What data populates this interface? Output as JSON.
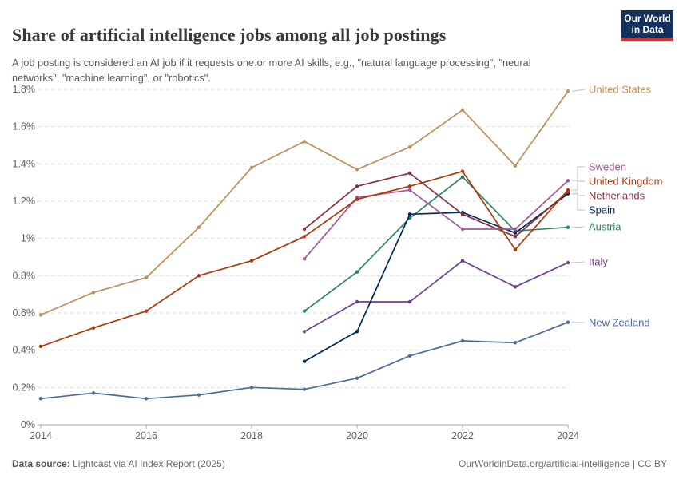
{
  "header": {
    "title": "Share of artificial intelligence jobs among all job postings",
    "subtitle": "A job posting is considered an AI job if it requests one or more AI skills, e.g., \"natural language processing\", \"neural networks\", \"machine learning\", or \"robotics\".",
    "logo": {
      "line1": "Our World",
      "line2": "in Data",
      "bg_color": "#13315C",
      "accent_color": "#D0342C"
    }
  },
  "chart_data": {
    "type": "line",
    "title": "Share of artificial intelligence jobs among all job postings",
    "xlabel": "",
    "ylabel": "",
    "xlim": [
      2014,
      2024
    ],
    "ylim": [
      0,
      1.8
    ],
    "grid": "horizontal-dashed",
    "legend_position": "right-end-labels",
    "x_ticks": [
      {
        "label": "2014",
        "value": 2014
      },
      {
        "label": "2016",
        "value": 2016
      },
      {
        "label": "2018",
        "value": 2018
      },
      {
        "label": "2020",
        "value": 2020
      },
      {
        "label": "2022",
        "value": 2022
      },
      {
        "label": "2024",
        "value": 2024
      }
    ],
    "y_ticks": [
      {
        "label": "0%",
        "value": 0
      },
      {
        "label": "0.2%",
        "value": 0.2
      },
      {
        "label": "0.4%",
        "value": 0.4
      },
      {
        "label": "0.6%",
        "value": 0.6
      },
      {
        "label": "0.8%",
        "value": 0.8
      },
      {
        "label": "1%",
        "value": 1.0
      },
      {
        "label": "1.2%",
        "value": 1.2
      },
      {
        "label": "1.4%",
        "value": 1.4
      },
      {
        "label": "1.6%",
        "value": 1.6
      },
      {
        "label": "1.8%",
        "value": 1.8
      }
    ],
    "series": [
      {
        "name": "United States",
        "color": "#BC8E5A",
        "x": [
          2014,
          2015,
          2016,
          2017,
          2018,
          2019,
          2020,
          2021,
          2022,
          2023,
          2024
        ],
        "values": [
          0.59,
          0.71,
          0.79,
          1.06,
          1.38,
          1.52,
          1.37,
          1.49,
          1.69,
          1.39,
          1.79
        ]
      },
      {
        "name": "Sweden",
        "color": "#A2559C",
        "x": [
          2019,
          2020,
          2021,
          2022,
          2023,
          2024
        ],
        "values": [
          0.89,
          1.22,
          1.26,
          1.05,
          1.05,
          1.31
        ]
      },
      {
        "name": "United Kingdom",
        "color": "#B13507",
        "x": [
          2014,
          2015,
          2016,
          2017,
          2018,
          2019,
          2020,
          2021,
          2022,
          2023,
          2024
        ],
        "values": [
          0.42,
          0.52,
          0.61,
          0.8,
          0.88,
          1.01,
          1.21,
          1.28,
          1.36,
          0.94,
          1.26
        ]
      },
      {
        "name": "Netherlands",
        "color": "#883039",
        "x": [
          2019,
          2020,
          2021,
          2022,
          2023,
          2024
        ],
        "values": [
          1.05,
          1.28,
          1.35,
          1.13,
          1.01,
          1.25
        ]
      },
      {
        "name": "Spain",
        "color": "#00295B",
        "x": [
          2019,
          2020,
          2021,
          2022,
          2023,
          2024
        ],
        "values": [
          0.34,
          0.5,
          1.13,
          1.14,
          1.03,
          1.24
        ]
      },
      {
        "name": "Austria",
        "color": "#2C8465",
        "x": [
          2019,
          2020,
          2021,
          2022,
          2023,
          2024
        ],
        "values": [
          0.61,
          0.82,
          1.11,
          1.33,
          1.04,
          1.06
        ]
      },
      {
        "name": "Italy",
        "color": "#6D3E91",
        "x": [
          2019,
          2020,
          2021,
          2022,
          2023,
          2024
        ],
        "values": [
          0.5,
          0.66,
          0.66,
          0.88,
          0.74,
          0.87
        ]
      },
      {
        "name": "New Zealand",
        "color": "#4C6A9C",
        "x": [
          2014,
          2015,
          2016,
          2017,
          2018,
          2019,
          2020,
          2021,
          2022,
          2023,
          2024
        ],
        "values": [
          0.14,
          0.17,
          0.14,
          0.16,
          0.2,
          0.19,
          0.25,
          0.37,
          0.45,
          0.44,
          0.55
        ]
      }
    ]
  },
  "footer": {
    "source_label": "Data source:",
    "source_text": " Lightcast via AI Index Report (2025)",
    "credit": "OurWorldinData.org/artificial-intelligence | CC BY"
  }
}
